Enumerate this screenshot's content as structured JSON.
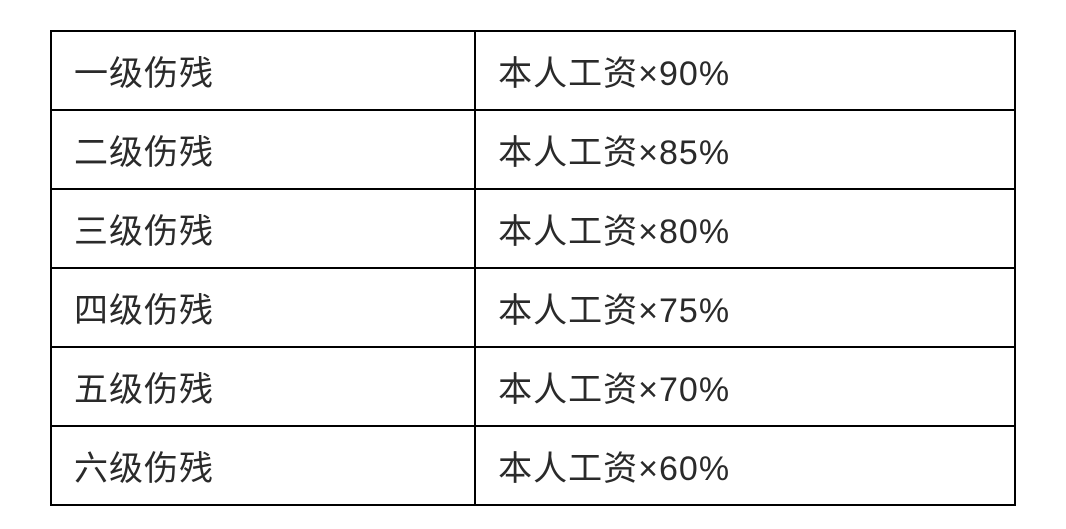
{
  "table": {
    "type": "table",
    "columns": [
      {
        "width_percent": 44,
        "align": "left"
      },
      {
        "width_percent": 56,
        "align": "left"
      }
    ],
    "rows": [
      [
        "一级伤残",
        "本人工资×90%"
      ],
      [
        "二级伤残",
        "本人工资×85%"
      ],
      [
        "三级伤残",
        "本人工资×80%"
      ],
      [
        "四级伤残",
        "本人工资×75%"
      ],
      [
        "五级伤残",
        "本人工资×70%"
      ],
      [
        "六级伤残",
        "本人工资×60%"
      ]
    ],
    "border_color": "#000000",
    "border_width": 2,
    "background_color": "#ffffff",
    "text_color": "#2a2a2a",
    "font_size": 34,
    "cell_padding_v": 14,
    "cell_padding_h": 22
  }
}
